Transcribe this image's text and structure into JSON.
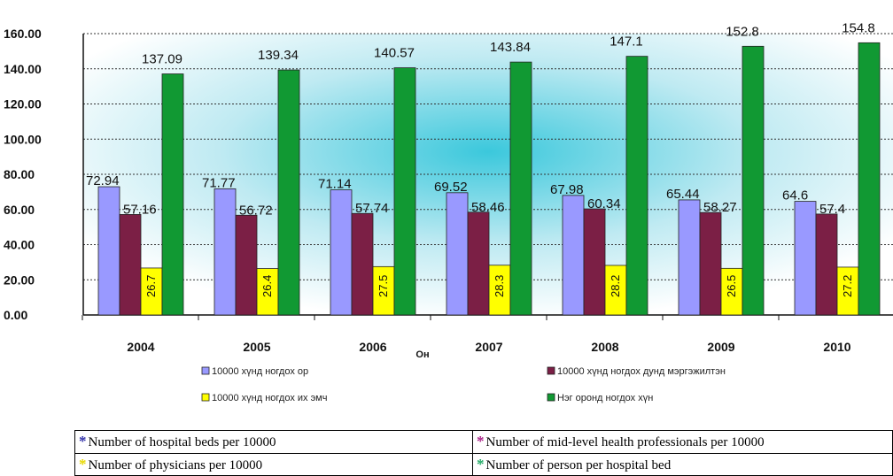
{
  "chart_data": {
    "type": "bar",
    "categories": [
      "2004",
      "2005",
      "2006",
      "2007",
      "2008",
      "2009",
      "2010"
    ],
    "xlabel": "Он",
    "ylim": [
      0,
      160
    ],
    "yticks": [
      "0.00",
      "20.00",
      "40.00",
      "60.00",
      "80.00",
      "100.00",
      "120.00",
      "140.00",
      "160.00"
    ],
    "grid": true,
    "legend_position": "bottom",
    "series": [
      {
        "name": "10000 хүнд ногдох ор",
        "color": "#9999ff",
        "values": [
          72.94,
          71.77,
          71.14,
          69.52,
          67.98,
          65.44,
          64.6
        ],
        "labels": [
          "72.94",
          "71.77",
          "71.14",
          "69.52",
          "67.98",
          "65.44",
          "64.6"
        ]
      },
      {
        "name": "10000 хүнд ногдох дунд мэргэжилтэн",
        "color": "#7b1f45",
        "values": [
          57.16,
          56.72,
          57.74,
          58.46,
          60.34,
          58.27,
          57.4
        ],
        "labels": [
          "57.16",
          "56.72",
          "57.74",
          "58.46",
          "60.34",
          "58.27",
          "57.4"
        ]
      },
      {
        "name": "10000 хүнд ногдох их эмч",
        "color": "#ffff00",
        "values": [
          26.7,
          26.4,
          27.5,
          28.3,
          28.2,
          26.5,
          27.2
        ],
        "labels": [
          "26.7",
          "26.4",
          "27.5",
          "28.3",
          "28.2",
          "26.5",
          "27.2"
        ]
      },
      {
        "name": "Нэг оронд ногдох хүн",
        "color": "#119933",
        "values": [
          137.09,
          139.34,
          140.57,
          143.84,
          147.1,
          152.8,
          154.8
        ],
        "labels": [
          "137.09",
          "139.34",
          "140.57",
          "143.84",
          "147.1",
          "152.8",
          "154.8"
        ]
      }
    ]
  },
  "translations": {
    "beds": "Number of hospital beds per 10000",
    "mid_level": "Number of mid-level health professionals per 10000",
    "physicians": "Number of physicians per 10000",
    "persons": "Number of person per hospital bed",
    "star": "*",
    "star_colors": [
      "#3333aa",
      "#aa2288",
      "#e8d800",
      "#22aa66"
    ]
  }
}
